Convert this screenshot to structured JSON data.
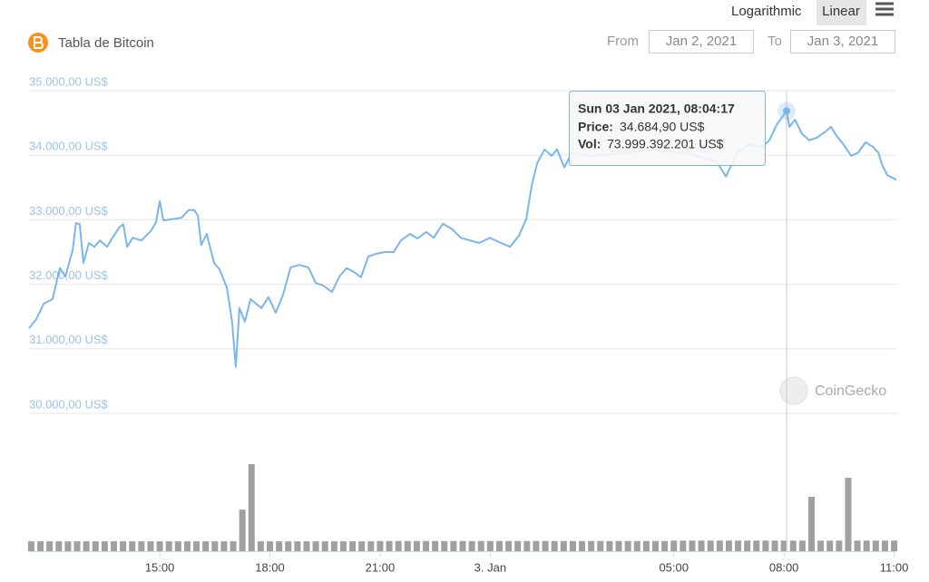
{
  "header": {
    "title": "Tabla de Bitcoin",
    "scale_log": "Logarithmic",
    "scale_linear": "Linear",
    "from_label": "From",
    "from_value": "Jan 2, 2021",
    "to_label": "To",
    "to_value": "Jan 3, 2021"
  },
  "watermark": "CoinGecko",
  "chart_data": {
    "type": "line",
    "xlim": [
      11.44,
      35.06
    ],
    "xticks": [
      {
        "value": 15,
        "label": "15:00"
      },
      {
        "value": 18,
        "label": "18:00"
      },
      {
        "value": 21,
        "label": "21:00"
      },
      {
        "value": 24,
        "label": "3. Jan"
      },
      {
        "value": 29,
        "label": "05:00"
      },
      {
        "value": 32,
        "label": "08:00"
      },
      {
        "value": 35,
        "label": "11:00"
      }
    ],
    "ylim": [
      30000,
      35000
    ],
    "yticks": [
      {
        "value": 30000,
        "label": "30.000,00 US$"
      },
      {
        "value": 31000,
        "label": "31.000,00 US$"
      },
      {
        "value": 32000,
        "label": "32.000,00 US$"
      },
      {
        "value": 33000,
        "label": "33.000,00 US$"
      },
      {
        "value": 34000,
        "label": "34.000,00 US$"
      },
      {
        "value": 35000,
        "label": "35.000,00 US$"
      }
    ],
    "grid": true,
    "price": {
      "color": "#7cb5ec",
      "x": [
        11.44,
        11.64,
        11.84,
        12.08,
        12.28,
        12.43,
        12.63,
        12.72,
        12.82,
        12.92,
        13.07,
        13.22,
        13.37,
        13.57,
        13.71,
        13.91,
        14.01,
        14.11,
        14.26,
        14.5,
        14.75,
        14.9,
        15.0,
        15.1,
        15.34,
        15.59,
        15.79,
        15.94,
        16.04,
        16.13,
        16.28,
        16.48,
        16.63,
        16.83,
        16.97,
        17.07,
        17.17,
        17.32,
        17.47,
        17.62,
        17.77,
        17.96,
        18.16,
        18.36,
        18.56,
        18.8,
        19.05,
        19.25,
        19.45,
        19.69,
        19.89,
        20.09,
        20.29,
        20.48,
        20.68,
        20.88,
        21.13,
        21.37,
        21.57,
        21.82,
        22.02,
        22.26,
        22.46,
        22.71,
        22.95,
        23.2,
        23.45,
        23.7,
        23.99,
        24.29,
        24.54,
        24.78,
        24.98,
        25.13,
        25.28,
        25.48,
        25.67,
        25.82,
        26.02,
        26.22,
        26.71,
        27.45,
        28.44,
        29.43,
        30.17,
        30.42,
        30.71,
        31.01,
        31.41,
        31.6,
        31.8,
        32.07,
        32.15,
        32.3,
        32.49,
        32.69,
        32.89,
        33.14,
        33.28,
        33.43,
        33.63,
        33.83,
        34.02,
        34.22,
        34.42,
        34.57,
        34.67,
        34.82,
        35.06
      ],
      "values": [
        31320,
        31460,
        31700,
        31770,
        32250,
        32120,
        32540,
        32950,
        32930,
        32330,
        32640,
        32580,
        32680,
        32580,
        32720,
        32890,
        32930,
        32580,
        32720,
        32680,
        32820,
        32960,
        33290,
        32990,
        33010,
        33030,
        33150,
        33150,
        33060,
        32610,
        32780,
        32330,
        32230,
        31940,
        31420,
        30720,
        31630,
        31420,
        31770,
        31700,
        31630,
        31800,
        31560,
        31840,
        32260,
        32300,
        32260,
        32020,
        31980,
        31880,
        32120,
        32250,
        32190,
        32110,
        32430,
        32470,
        32500,
        32500,
        32680,
        32780,
        32710,
        32810,
        32720,
        32940,
        32860,
        32720,
        32680,
        32640,
        32720,
        32640,
        32580,
        32750,
        33010,
        33530,
        33880,
        34090,
        33990,
        34090,
        33810,
        34040,
        33990,
        34020,
        34090,
        34020,
        33900,
        33670,
        34020,
        34160,
        34130,
        34230,
        34470,
        34684.9,
        34440,
        34550,
        34330,
        34230,
        34270,
        34370,
        34440,
        34300,
        34160,
        33990,
        34040,
        34200,
        34130,
        34040,
        33850,
        33690,
        33620
      ]
    },
    "volume": {
      "color": "#a0a0a0",
      "ylim": [
        0,
        800000000000
      ],
      "x": [
        11.5,
        11.75,
        12,
        12.25,
        12.5,
        12.75,
        13,
        13.25,
        13.5,
        13.75,
        14,
        14.25,
        14.5,
        14.75,
        15,
        15.25,
        15.5,
        15.75,
        16,
        16.25,
        16.5,
        16.75,
        17,
        17.25,
        17.5,
        17.75,
        18,
        18.25,
        18.5,
        18.75,
        19,
        19.25,
        19.5,
        19.75,
        20,
        20.25,
        20.5,
        20.75,
        21,
        21.25,
        21.5,
        21.75,
        22,
        22.25,
        22.5,
        22.75,
        23,
        23.25,
        23.5,
        23.75,
        24,
        24.25,
        24.5,
        24.75,
        25,
        25.25,
        25.5,
        25.75,
        26,
        26.25,
        26.5,
        26.75,
        27,
        27.25,
        27.5,
        27.75,
        28,
        28.25,
        28.5,
        28.75,
        29,
        29.25,
        29.5,
        29.75,
        30,
        30.25,
        30.5,
        30.75,
        31,
        31.25,
        31.5,
        31.75,
        32,
        32.25,
        32.5,
        32.75,
        33,
        33.25,
        33.5,
        33.75,
        34,
        34.25,
        34.5,
        34.75,
        35
      ],
      "values": [
        68000000000,
        68000000000,
        68000000000,
        68000000000,
        68000000000,
        68000000000,
        68000000000,
        68000000000,
        68000000000,
        68000000000,
        68000000000,
        68000000000,
        68000000000,
        68000000000,
        68000000000,
        68000000000,
        68000000000,
        68000000000,
        68000000000,
        68000000000,
        68000000000,
        68000000000,
        68000000000,
        287000000000,
        600000000000,
        68000000000,
        68000000000,
        68000000000,
        68000000000,
        68000000000,
        68000000000,
        68000000000,
        68000000000,
        68000000000,
        68000000000,
        68000000000,
        68000000000,
        68000000000,
        70000000000,
        70000000000,
        70000000000,
        70000000000,
        70000000000,
        70000000000,
        70000000000,
        70000000000,
        70000000000,
        70000000000,
        70000000000,
        70000000000,
        70000000000,
        70000000000,
        70000000000,
        70000000000,
        70000000000,
        70000000000,
        70000000000,
        70000000000,
        70000000000,
        70000000000,
        70000000000,
        70000000000,
        70000000000,
        70000000000,
        70000000000,
        70000000000,
        70000000000,
        70000000000,
        70000000000,
        70000000000,
        73000000000,
        73000000000,
        73000000000,
        73000000000,
        73000000000,
        73000000000,
        73000000000,
        73000000000,
        73000000000,
        73000000000,
        73000000000,
        73000000000,
        73000000000,
        73000000000,
        73000000000,
        375000000000,
        73000000000,
        73000000000,
        73000000000,
        506000000000,
        73000000000,
        73000000000,
        73000000000,
        73000000000,
        73000000000
      ]
    },
    "tooltip": {
      "x": 32.07,
      "date": "Sun 03 Jan 2021, 08:04:17",
      "price_label": "Price:",
      "price": {
        "value": 34684.9,
        "label": "34.684,90 US$"
      },
      "vol_label": "Vol:",
      "vol": "73.999.392.201 US$"
    }
  }
}
